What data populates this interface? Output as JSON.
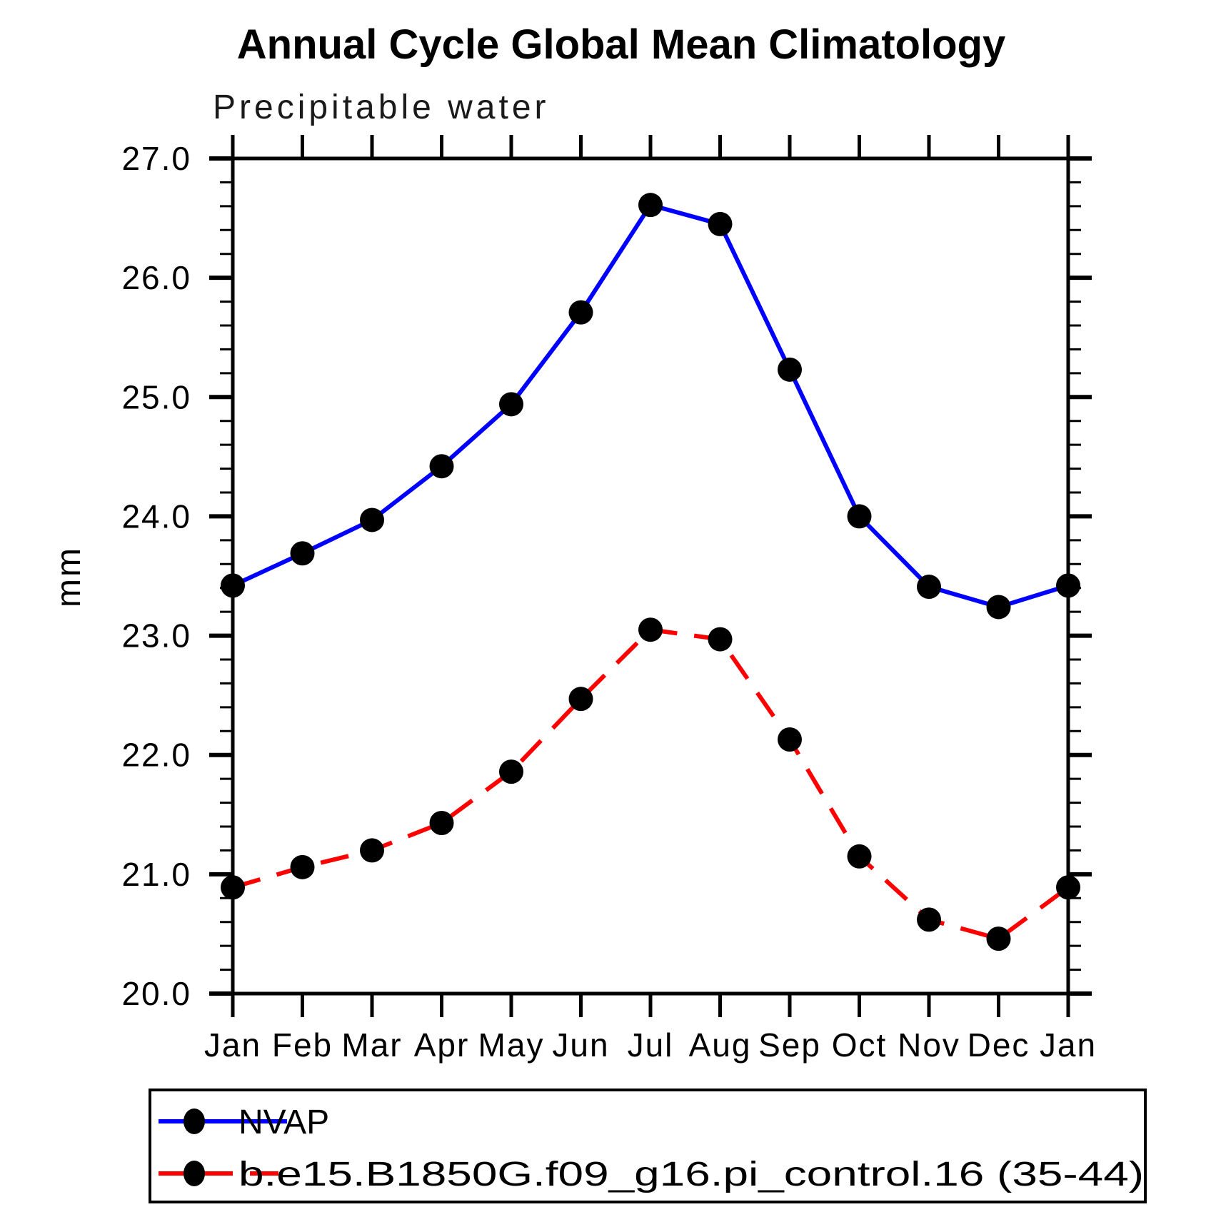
{
  "title": "Annual Cycle Global Mean Climatology",
  "subtitle": "Precipitable water",
  "y_axis_label": "mm",
  "colors": {
    "axis": "#000000",
    "marker": "#000000",
    "nvap_line": "#0000ff",
    "model_line": "#ff0000",
    "background": "#ffffff"
  },
  "chart_data": {
    "type": "line",
    "title": "Annual Cycle Global Mean Climatology",
    "subtitle": "Precipitable water",
    "ylabel": "mm",
    "xlabel": "",
    "x_tick_labels": [
      "Jan",
      "Feb",
      "Mar",
      "Apr",
      "May",
      "Jun",
      "Jul",
      "Aug",
      "Sep",
      "Oct",
      "Nov",
      "Dec",
      "Jan"
    ],
    "ylim": [
      20.0,
      27.0
    ],
    "y_major_ticks": [
      20.0,
      21.0,
      22.0,
      23.0,
      24.0,
      25.0,
      26.0,
      27.0
    ],
    "y_tick_labels": [
      "20.0",
      "21.0",
      "22.0",
      "23.0",
      "24.0",
      "25.0",
      "26.0",
      "27.0"
    ],
    "y_minor_step": 0.2,
    "grid": false,
    "legend_position": "bottom-left",
    "series": [
      {
        "name": "NVAP",
        "color": "#0000ff",
        "line_style": "solid",
        "marker": "filled-circle",
        "marker_color": "#000000",
        "values": [
          23.42,
          23.69,
          23.97,
          24.42,
          24.94,
          25.71,
          26.61,
          26.45,
          25.23,
          24.0,
          23.41,
          23.24,
          23.42
        ]
      },
      {
        "name": "b.e15.B1850G.f09_g16.pi_control.16 (35-44)",
        "color": "#ff0000",
        "line_style": "dashed",
        "marker": "filled-circle",
        "marker_color": "#000000",
        "values": [
          20.89,
          21.06,
          21.2,
          21.43,
          21.86,
          22.47,
          23.05,
          22.97,
          22.13,
          21.15,
          20.62,
          20.46,
          20.89
        ]
      }
    ]
  }
}
